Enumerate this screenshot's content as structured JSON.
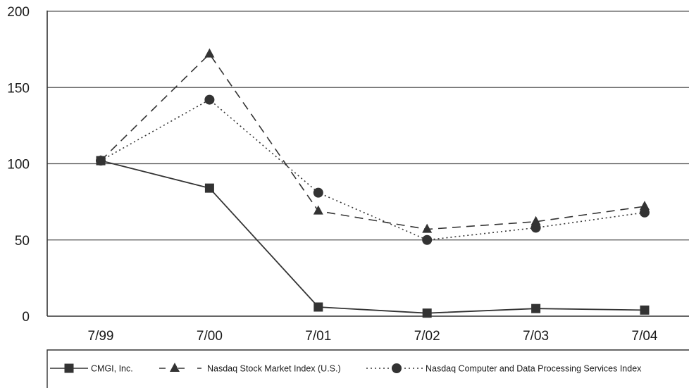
{
  "chart_data": {
    "type": "line",
    "title": "",
    "xlabel": "",
    "ylabel": "",
    "categories": [
      "7/99",
      "7/00",
      "7/01",
      "7/02",
      "7/03",
      "7/04"
    ],
    "ylim": [
      0,
      200
    ],
    "yticks": [
      0,
      50,
      100,
      150,
      200
    ],
    "grid": "horizontal",
    "legend_position": "bottom",
    "series": [
      {
        "name": "CMGI, Inc.",
        "values": [
          102,
          84,
          6,
          2,
          5,
          4
        ],
        "marker": "square",
        "line_style": "solid",
        "color": "#333333"
      },
      {
        "name": "Nasdaq Stock Market Index (U.S.)",
        "values": [
          102,
          172,
          69,
          57,
          62,
          72
        ],
        "marker": "triangle",
        "line_style": "dashed",
        "color": "#333333"
      },
      {
        "name": "Nasdaq Computer and Data Processing Services Index",
        "values": [
          102,
          142,
          81,
          50,
          58,
          68
        ],
        "marker": "circle",
        "line_style": "dotted",
        "color": "#333333"
      }
    ]
  }
}
